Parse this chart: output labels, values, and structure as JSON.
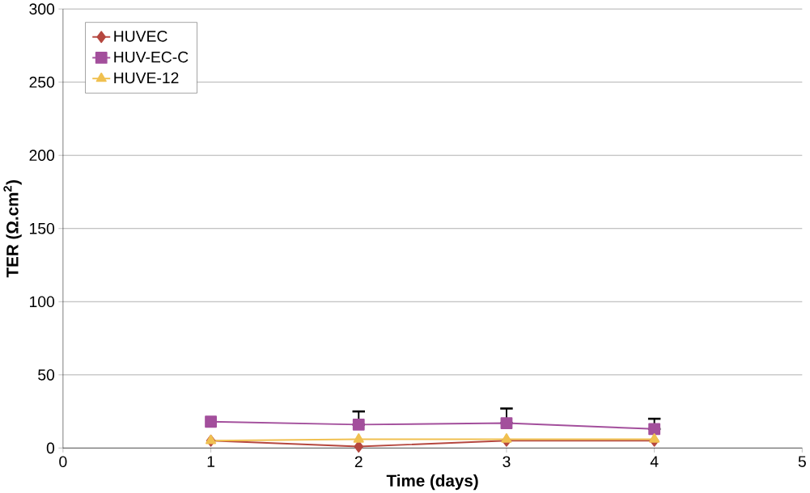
{
  "chart_data": {
    "type": "line",
    "xlabel": "Time (days)",
    "ylabel": "TER (Ω.cm$^{2}$)",
    "x": [
      1,
      2,
      3,
      4
    ],
    "series": [
      {
        "name": "HUVEC",
        "color": "#b5473f",
        "marker": "diamond",
        "values": [
          5,
          1,
          5,
          5
        ]
      },
      {
        "name": "HUV-EC-C",
        "color": "#a34f9c",
        "marker": "square",
        "values": [
          18,
          16,
          17,
          13
        ],
        "errors": [
          null,
          [
            16,
            25
          ],
          [
            17,
            27
          ],
          [
            13,
            20
          ]
        ]
      },
      {
        "name": "HUVE-12",
        "color": "#f0c050",
        "marker": "triangle",
        "values": [
          5,
          6,
          6,
          6
        ]
      }
    ],
    "xlim": [
      0,
      5
    ],
    "xticks": [
      0,
      1,
      2,
      3,
      4,
      5
    ],
    "ylim": [
      0,
      300
    ],
    "yticks": [
      0,
      50,
      100,
      150,
      200,
      250,
      300
    ],
    "grid": "y",
    "legend": "top left"
  }
}
